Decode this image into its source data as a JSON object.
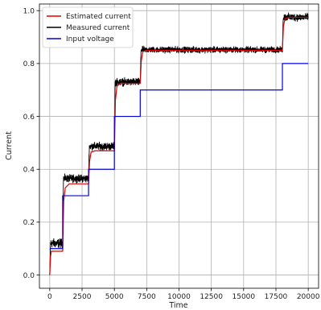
{
  "chart_data": {
    "type": "line",
    "title": "",
    "xlabel": "Time",
    "ylabel": "Current",
    "xlim": [
      -800,
      20800
    ],
    "ylim": [
      -0.05,
      1.025
    ],
    "xticks": [
      0,
      2500,
      5000,
      7500,
      10000,
      12500,
      15000,
      17500,
      20000
    ],
    "xtick_labels": [
      "0",
      "2500",
      "5000",
      "7500",
      "10000",
      "12500",
      "15000",
      "17500",
      "20000"
    ],
    "yticks": [
      0.0,
      0.2,
      0.4,
      0.6,
      0.8,
      1.0
    ],
    "ytick_labels": [
      "0.0",
      "0.2",
      "0.4",
      "0.6",
      "0.8",
      "1.0"
    ],
    "grid": true,
    "legend": "top-left",
    "series": [
      {
        "name": "Estimated current",
        "color": "#e00000",
        "x": [
          0,
          60,
          120,
          990,
          1000,
          1080,
          1200,
          1500,
          2980,
          3000,
          3080,
          3200,
          3500,
          4980,
          5000,
          5080,
          5200,
          5500,
          6980,
          7000,
          7080,
          7200,
          7500,
          17980,
          18000,
          18080,
          18200,
          18500,
          20000
        ],
        "y": [
          0,
          0.07,
          0.09,
          0.09,
          0.09,
          0.28,
          0.33,
          0.345,
          0.345,
          0.345,
          0.43,
          0.465,
          0.47,
          0.47,
          0.47,
          0.66,
          0.715,
          0.725,
          0.725,
          0.725,
          0.81,
          0.845,
          0.85,
          0.85,
          0.85,
          0.94,
          0.97,
          0.975,
          0.975
        ]
      },
      {
        "name": "Measured current",
        "color": "#000000",
        "segments": [
          {
            "x": [
              0,
              1000
            ],
            "level": 0.12,
            "noise": 0.012
          },
          {
            "x": [
              1000,
              3000
            ],
            "level": 0.365,
            "noise": 0.01
          },
          {
            "x": [
              3000,
              5000
            ],
            "level": 0.487,
            "noise": 0.01
          },
          {
            "x": [
              5000,
              7000
            ],
            "level": 0.73,
            "noise": 0.01
          },
          {
            "x": [
              7000,
              18000
            ],
            "level": 0.852,
            "noise": 0.008
          },
          {
            "x": [
              18000,
              20000
            ],
            "level": 0.975,
            "noise": 0.01
          }
        ]
      },
      {
        "name": "Input voltage",
        "color": "#0000dd",
        "x": [
          0,
          1000,
          1000,
          3000,
          3000,
          5000,
          5000,
          7000,
          7000,
          18000,
          18000,
          20000
        ],
        "y": [
          0.1,
          0.1,
          0.3,
          0.3,
          0.4,
          0.4,
          0.6,
          0.6,
          0.7,
          0.7,
          0.8,
          0.8
        ]
      }
    ]
  }
}
